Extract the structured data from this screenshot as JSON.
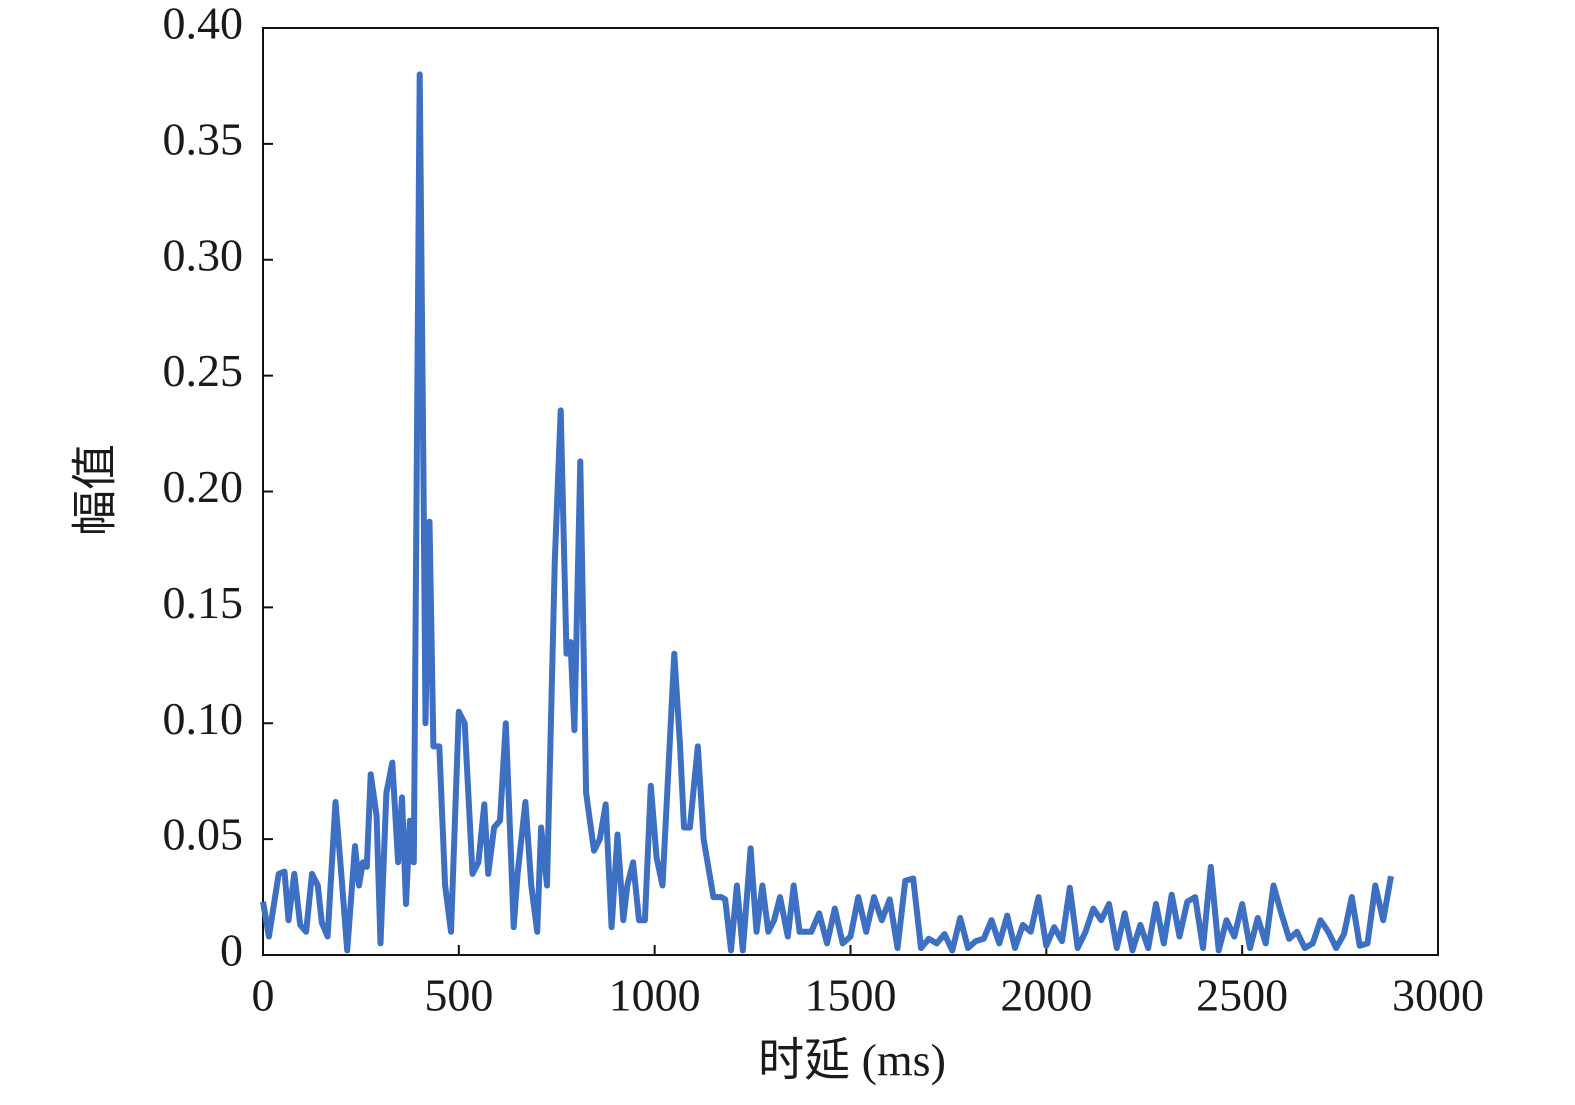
{
  "chart_data": {
    "type": "line",
    "x_label": "时延 (ms)",
    "y_label": "幅值",
    "xlim": [
      0,
      3000
    ],
    "xticks": [
      0,
      500,
      1000,
      1500,
      2000,
      2500,
      3000
    ],
    "ylim": [
      0,
      0.4
    ],
    "yticks": [
      0,
      0.05,
      {
        "value": 0.1,
        "label": "0.10"
      },
      0.15,
      {
        "value": 0.2,
        "label": "0.20"
      },
      0.25,
      {
        "value": 0.3,
        "label": "0.30"
      },
      0.35,
      {
        "value": 0.4,
        "label": "0.40"
      }
    ],
    "color": "#3d6fc2",
    "x": [
      0,
      15,
      40,
      55,
      65,
      80,
      95,
      110,
      125,
      140,
      150,
      165,
      185,
      200,
      215,
      235,
      245,
      255,
      265,
      275,
      290,
      300,
      315,
      330,
      345,
      355,
      365,
      375,
      385,
      400,
      410,
      415,
      425,
      435,
      450,
      465,
      480,
      500,
      515,
      535,
      550,
      565,
      575,
      590,
      605,
      620,
      635,
      640,
      650,
      670,
      685,
      700,
      710,
      725,
      745,
      760,
      775,
      785,
      795,
      810,
      825,
      845,
      860,
      875,
      890,
      905,
      920,
      930,
      945,
      960,
      975,
      990,
      1005,
      1020,
      1050,
      1065,
      1075,
      1090,
      1110,
      1125,
      1150,
      1170,
      1180,
      1195,
      1210,
      1225,
      1245,
      1260,
      1275,
      1290,
      1305,
      1320,
      1340,
      1355,
      1370,
      1385,
      1400,
      1420,
      1440,
      1460,
      1480,
      1500,
      1520,
      1540,
      1560,
      1580,
      1600,
      1620,
      1640,
      1660,
      1680,
      1700,
      1720,
      1740,
      1760,
      1780,
      1800,
      1820,
      1840,
      1860,
      1880,
      1900,
      1920,
      1940,
      1960,
      1980,
      2000,
      2020,
      2040,
      2060,
      2080,
      2100,
      2120,
      2140,
      2160,
      2180,
      2200,
      2220,
      2240,
      2260,
      2280,
      2300,
      2320,
      2340,
      2360,
      2380,
      2400,
      2420,
      2440,
      2460,
      2480,
      2500,
      2520,
      2540,
      2560,
      2580,
      2600,
      2620,
      2640,
      2660,
      2680,
      2700,
      2720,
      2740,
      2760,
      2780,
      2800,
      2820,
      2840,
      2860,
      2880
    ],
    "values": [
      0.023,
      0.008,
      0.035,
      0.036,
      0.015,
      0.035,
      0.013,
      0.01,
      0.035,
      0.03,
      0.014,
      0.008,
      0.066,
      0.035,
      0.002,
      0.047,
      0.03,
      0.04,
      0.038,
      0.078,
      0.06,
      0.005,
      0.07,
      0.083,
      0.04,
      0.068,
      0.022,
      0.058,
      0.04,
      0.38,
      0.2,
      0.1,
      0.187,
      0.09,
      0.09,
      0.03,
      0.01,
      0.105,
      0.1,
      0.035,
      0.04,
      0.065,
      0.035,
      0.055,
      0.058,
      0.1,
      0.035,
      0.012,
      0.035,
      0.066,
      0.03,
      0.01,
      0.055,
      0.03,
      0.17,
      0.235,
      0.13,
      0.135,
      0.097,
      0.213,
      0.07,
      0.045,
      0.05,
      0.065,
      0.012,
      0.052,
      0.015,
      0.03,
      0.04,
      0.015,
      0.015,
      0.073,
      0.042,
      0.03,
      0.13,
      0.09,
      0.055,
      0.055,
      0.09,
      0.05,
      0.025,
      0.025,
      0.024,
      0.002,
      0.03,
      0.002,
      0.046,
      0.01,
      0.03,
      0.01,
      0.015,
      0.025,
      0.008,
      0.03,
      0.01,
      0.01,
      0.01,
      0.018,
      0.005,
      0.02,
      0.005,
      0.008,
      0.025,
      0.01,
      0.025,
      0.015,
      0.024,
      0.003,
      0.032,
      0.033,
      0.003,
      0.007,
      0.005,
      0.009,
      0.002,
      0.016,
      0.003,
      0.006,
      0.007,
      0.015,
      0.005,
      0.017,
      0.003,
      0.013,
      0.01,
      0.025,
      0.004,
      0.012,
      0.006,
      0.029,
      0.003,
      0.01,
      0.02,
      0.015,
      0.022,
      0.003,
      0.018,
      0.002,
      0.013,
      0.003,
      0.022,
      0.005,
      0.026,
      0.008,
      0.023,
      0.025,
      0.003,
      0.038,
      0.002,
      0.015,
      0.008,
      0.022,
      0.003,
      0.016,
      0.005,
      0.03,
      0.018,
      0.007,
      0.01,
      0.003,
      0.005,
      0.015,
      0.01,
      0.003,
      0.009,
      0.025,
      0.004,
      0.005,
      0.03,
      0.015,
      0.034
    ]
  }
}
